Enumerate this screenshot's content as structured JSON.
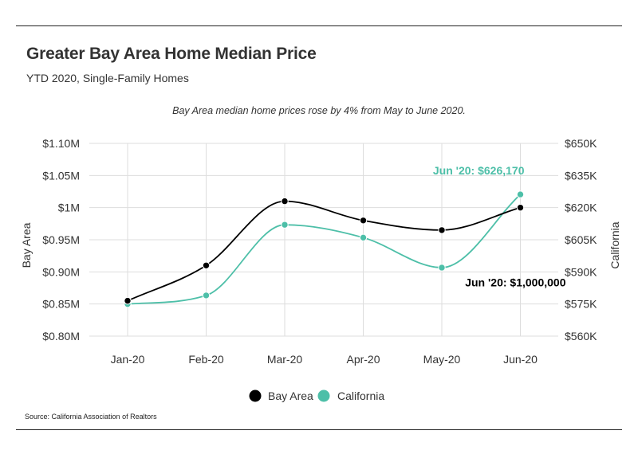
{
  "header": {
    "title": "Greater Bay Area Home Median Price",
    "subtitle": "YTD 2020, Single-Family Homes"
  },
  "footer": {
    "source": "Source:  California Association of Realtors"
  },
  "colors": {
    "bay_area": "#000000",
    "california": "#4dbfa8"
  },
  "chart_data": {
    "type": "line",
    "note": "Bay Area median home prices rose by 4% from May to June 2020.",
    "categories": [
      "Jan-20",
      "Feb-20",
      "Mar-20",
      "Apr-20",
      "May-20",
      "Jun-20"
    ],
    "series": [
      {
        "name": "Bay Area",
        "axis": "left",
        "values": [
          855000,
          910000,
          1010000,
          980000,
          965000,
          1000000
        ]
      },
      {
        "name": "California",
        "axis": "right",
        "values": [
          575000,
          579000,
          612000,
          606000,
          592000,
          626170
        ]
      }
    ],
    "left_axis": {
      "label": "Bay Area",
      "range": [
        800000,
        1100000
      ],
      "ticks": [
        800000,
        850000,
        900000,
        950000,
        1000000,
        1050000,
        1100000
      ],
      "tick_labels": [
        "$0.80M",
        "$0.85M",
        "$0.90M",
        "$0.95M",
        "$1M",
        "$1.05M",
        "$1.10M"
      ]
    },
    "right_axis": {
      "label": "California",
      "range": [
        560000,
        650000
      ],
      "ticks": [
        560000,
        575000,
        590000,
        605000,
        620000,
        635000,
        650000
      ],
      "tick_labels": [
        "$560K",
        "$575K",
        "$590K",
        "$605K",
        "$620K",
        "$635K",
        "$650K"
      ]
    },
    "annotations": [
      {
        "series": "California",
        "label": "Jun '20: $626,170"
      },
      {
        "series": "Bay Area",
        "label": "Jun '20: $1,000,000"
      }
    ],
    "legend_position": "bottom-center",
    "grid": true
  }
}
